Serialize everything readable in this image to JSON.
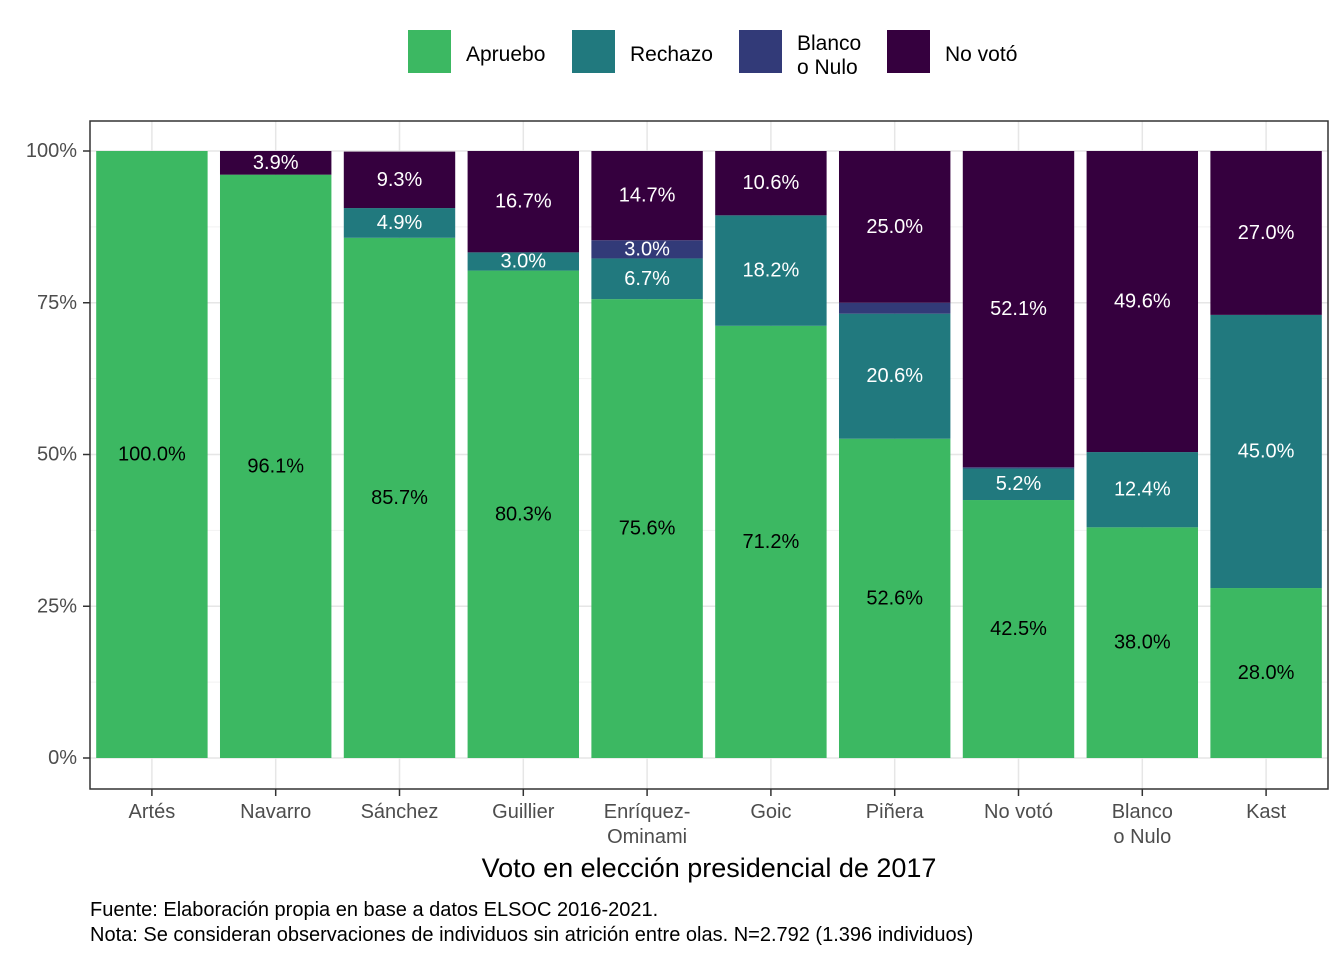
{
  "chart_data": {
    "type": "bar",
    "stacked": true,
    "xlabel": "Voto en elección presidencial de 2017",
    "ylabel": "",
    "ylim": [
      0,
      100
    ],
    "y_ticks": [
      "0%",
      "25%",
      "50%",
      "75%",
      "100%"
    ],
    "y_tick_values": [
      0,
      25,
      50,
      75,
      100
    ],
    "grid": true,
    "legend_position": "top",
    "categories": [
      [
        "Artés"
      ],
      [
        "Navarro"
      ],
      [
        "Sánchez"
      ],
      [
        "Guillier"
      ],
      [
        "Enríquez-",
        "Ominami"
      ],
      [
        "Goic"
      ],
      [
        "Piñera"
      ],
      [
        "No votó"
      ],
      [
        "Blanco",
        "o Nulo"
      ],
      [
        "Kast"
      ]
    ],
    "series": [
      {
        "name": [
          "Apruebo"
        ],
        "color": "#3cb862",
        "label_color": "#000000",
        "values": [
          100.0,
          96.1,
          85.7,
          80.3,
          75.6,
          71.2,
          52.6,
          42.5,
          38.0,
          28.0
        ],
        "labels": [
          "100.0%",
          "96.1%",
          "85.7%",
          "80.3%",
          "75.6%",
          "71.2%",
          "52.6%",
          "42.5%",
          "38.0%",
          "28.0%"
        ]
      },
      {
        "name": [
          "Rechazo"
        ],
        "color": "#21797e",
        "label_color": "#ffffff",
        "values": [
          0,
          0,
          4.9,
          3.0,
          6.7,
          18.2,
          20.6,
          5.2,
          12.4,
          45.0
        ],
        "labels": [
          "",
          "",
          "4.9%",
          "3.0%",
          "6.7%",
          "18.2%",
          "20.6%",
          "5.2%",
          "12.4%",
          "45.0%"
        ]
      },
      {
        "name": [
          "Blanco",
          "o Nulo"
        ],
        "color": "#323a78",
        "label_color": "#ffffff",
        "values": [
          0,
          0,
          0,
          0,
          3.0,
          0,
          1.8,
          0.2,
          0,
          0
        ],
        "labels": [
          "",
          "",
          "",
          "",
          "3.0%",
          "",
          "",
          "",
          "",
          ""
        ]
      },
      {
        "name": [
          "No votó"
        ],
        "color": "#35003e",
        "label_color": "#ffffff",
        "values": [
          0,
          3.9,
          9.3,
          16.7,
          14.7,
          10.6,
          25.0,
          52.1,
          49.6,
          27.0
        ],
        "labels": [
          "",
          "3.9%",
          "9.3%",
          "16.7%",
          "14.7%",
          "10.6%",
          "25.0%",
          "52.1%",
          "49.6%",
          "27.0%"
        ]
      }
    ],
    "caption": [
      "Fuente: Elaboración propia en base a datos ELSOC 2016-2021.",
      "Nota: Se consideran observaciones de individuos sin atrición entre olas. N=2.792 (1.396 individuos)"
    ],
    "colors": {
      "panel_border": "#333333",
      "grid_major": "#e6e6e6",
      "grid_minor": "#f2f2f2",
      "tick": "#333333"
    }
  }
}
